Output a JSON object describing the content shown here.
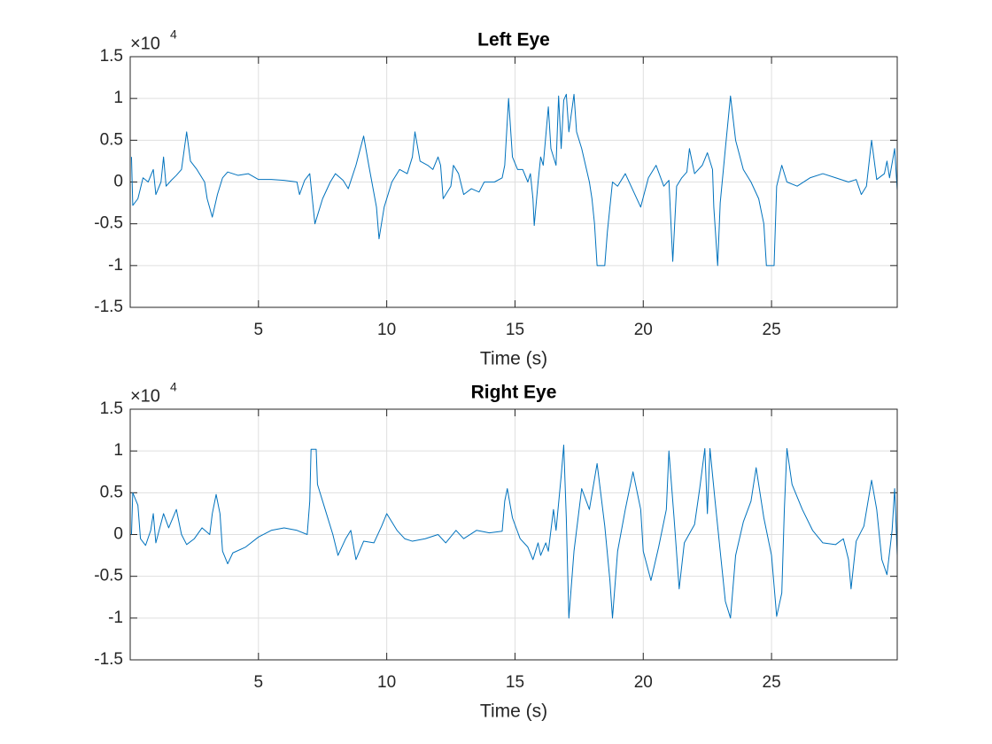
{
  "chart_data": [
    {
      "type": "line",
      "title": "Left Eye",
      "xlabel": "Time (s)",
      "y_scale_label": {
        "base": "×10",
        "exponent": "4"
      },
      "xlim": [
        0,
        29.9
      ],
      "xticks": [
        5,
        10,
        15,
        20,
        25
      ],
      "ylim": [
        -15000,
        15000
      ],
      "yticks": [
        {
          "value": -15000,
          "label": "-1.5"
        },
        {
          "value": -10000,
          "label": "-1"
        },
        {
          "value": -5000,
          "label": "-0.5"
        },
        {
          "value": 0,
          "label": "0"
        },
        {
          "value": 5000,
          "label": "0.5"
        },
        {
          "value": 10000,
          "label": "1"
        },
        {
          "value": 15000,
          "label": "1.5"
        }
      ],
      "grid": true,
      "x": [
        0.05,
        0.1,
        0.3,
        0.5,
        0.7,
        0.9,
        1.0,
        1.2,
        1.3,
        1.4,
        1.6,
        1.8,
        2.0,
        2.2,
        2.35,
        2.6,
        2.9,
        3.0,
        3.2,
        3.4,
        3.6,
        3.8,
        4.2,
        4.6,
        5.0,
        5.5,
        6.0,
        6.5,
        6.6,
        6.8,
        7.0,
        7.1,
        7.2,
        7.5,
        7.8,
        8.0,
        8.3,
        8.5,
        8.8,
        9.1,
        9.3,
        9.6,
        9.7,
        9.9,
        10.2,
        10.5,
        10.8,
        11.0,
        11.1,
        11.3,
        11.6,
        11.8,
        12.0,
        12.1,
        12.2,
        12.5,
        12.6,
        12.8,
        13.0,
        13.3,
        13.6,
        13.8,
        14.2,
        14.5,
        14.6,
        14.75,
        14.9,
        15.1,
        15.3,
        15.5,
        15.6,
        15.7,
        15.75,
        15.9,
        16.0,
        16.1,
        16.3,
        16.4,
        16.6,
        16.7,
        16.8,
        16.9,
        17.0,
        17.1,
        17.3,
        17.4,
        17.6,
        17.9,
        18.0,
        18.1,
        18.2,
        18.5,
        18.6,
        18.8,
        19.0,
        19.3,
        19.6,
        19.9,
        20.2,
        20.5,
        20.8,
        21.0,
        21.15,
        21.3,
        21.5,
        21.7,
        21.8,
        22.0,
        22.3,
        22.5,
        22.7,
        22.75,
        22.9,
        23.0,
        23.2,
        23.4,
        23.6,
        23.9,
        24.2,
        24.5,
        24.7,
        24.8,
        25.1,
        25.2,
        25.4,
        25.6,
        26.0,
        26.5,
        27.0,
        27.5,
        28.0,
        28.3,
        28.5,
        28.7,
        28.9,
        29.1,
        29.4,
        29.5,
        29.6,
        29.8,
        29.9
      ],
      "series": [
        {
          "color": "#0072bd",
          "values": [
            3000,
            -2800,
            -2000,
            500,
            0,
            1500,
            -1500,
            0,
            3000,
            -500,
            200,
            800,
            1500,
            6000,
            2500,
            1500,
            0,
            -2000,
            -4200,
            -1500,
            500,
            1200,
            800,
            1000,
            300,
            300,
            200,
            0,
            -1500,
            200,
            1000,
            -2000,
            -5000,
            -2000,
            0,
            1000,
            200,
            -800,
            2000,
            5500,
            2000,
            -3000,
            -6800,
            -3000,
            0,
            1500,
            1000,
            3000,
            6000,
            2500,
            2000,
            1500,
            3000,
            2000,
            -2000,
            -500,
            2000,
            1000,
            -1500,
            -800,
            -1200,
            0,
            0,
            500,
            2000,
            10000,
            3000,
            1500,
            1500,
            0,
            1000,
            -2000,
            -5200,
            0,
            3000,
            2000,
            9000,
            4000,
            2000,
            10300,
            4000,
            9800,
            10500,
            6000,
            10500,
            6000,
            4000,
            0,
            -2000,
            -5000,
            -10000,
            -10000,
            -6000,
            0,
            -500,
            1000,
            -1000,
            -3000,
            500,
            2000,
            -500,
            200,
            -9500,
            -500,
            500,
            1200,
            4000,
            1000,
            2000,
            3500,
            1500,
            -3000,
            -10000,
            -2500,
            4000,
            10300,
            5000,
            1500,
            0,
            -2000,
            -5000,
            -10000,
            -10000,
            -500,
            2000,
            0,
            -500,
            500,
            1000,
            500,
            0,
            300,
            -1500,
            -500,
            5000,
            300,
            1000,
            2500,
            500,
            4000,
            -1000
          ]
        }
      ]
    },
    {
      "type": "line",
      "title": "Right Eye",
      "xlabel": "Time (s)",
      "y_scale_label": {
        "base": "×10",
        "exponent": "4"
      },
      "xlim": [
        0,
        29.9
      ],
      "xticks": [
        5,
        10,
        15,
        20,
        25
      ],
      "ylim": [
        -15000,
        15000
      ],
      "yticks": [
        {
          "value": -15000,
          "label": "-1.5"
        },
        {
          "value": -10000,
          "label": "-1"
        },
        {
          "value": -5000,
          "label": "-0.5"
        },
        {
          "value": 0,
          "label": "0"
        },
        {
          "value": 5000,
          "label": "0.5"
        },
        {
          "value": 10000,
          "label": "1"
        },
        {
          "value": 15000,
          "label": "1.5"
        }
      ],
      "grid": true,
      "x": [
        0.05,
        0.1,
        0.3,
        0.4,
        0.6,
        0.8,
        0.9,
        1.0,
        1.3,
        1.5,
        1.8,
        2.0,
        2.2,
        2.5,
        2.8,
        3.1,
        3.2,
        3.35,
        3.5,
        3.6,
        3.8,
        4.0,
        4.5,
        5.0,
        5.5,
        6.0,
        6.5,
        6.9,
        7.0,
        7.05,
        7.25,
        7.3,
        7.6,
        7.9,
        8.1,
        8.4,
        8.6,
        8.8,
        9.1,
        9.5,
        9.8,
        10.0,
        10.4,
        10.7,
        11.0,
        11.5,
        12.0,
        12.3,
        12.7,
        13.0,
        13.5,
        14.0,
        14.5,
        14.6,
        14.7,
        14.9,
        15.2,
        15.5,
        15.7,
        15.9,
        16.0,
        16.2,
        16.3,
        16.5,
        16.6,
        16.8,
        16.9,
        17.0,
        17.1,
        17.3,
        17.6,
        17.9,
        18.2,
        18.5,
        18.7,
        18.8,
        19.0,
        19.3,
        19.6,
        19.9,
        20.0,
        20.3,
        20.6,
        20.9,
        21.0,
        21.2,
        21.4,
        21.6,
        22.0,
        22.2,
        22.4,
        22.5,
        22.6,
        22.8,
        23.0,
        23.2,
        23.4,
        23.6,
        23.9,
        24.2,
        24.4,
        24.7,
        25.0,
        25.2,
        25.4,
        25.5,
        25.6,
        25.8,
        26.2,
        26.6,
        27.0,
        27.5,
        27.8,
        28.0,
        28.1,
        28.3,
        28.6,
        28.9,
        29.1,
        29.3,
        29.5,
        29.7,
        29.8,
        29.9
      ],
      "series": [
        {
          "color": "#0072bd",
          "values": [
            0,
            5000,
            3500,
            -500,
            -1300,
            500,
            2500,
            -1000,
            2500,
            800,
            3000,
            0,
            -1200,
            -500,
            800,
            0,
            2500,
            4800,
            2500,
            -2000,
            -3500,
            -2200,
            -1500,
            -300,
            500,
            800,
            500,
            0,
            4000,
            10200,
            10200,
            6000,
            3000,
            0,
            -2500,
            -500,
            500,
            -3000,
            -800,
            -1000,
            1000,
            2500,
            500,
            -500,
            -800,
            -500,
            0,
            -1000,
            500,
            -500,
            500,
            200,
            400,
            4000,
            5500,
            2000,
            -500,
            -1500,
            -3000,
            -1000,
            -2500,
            -1000,
            -2000,
            3000,
            500,
            7000,
            10700,
            2000,
            -10000,
            -2000,
            5500,
            3000,
            8500,
            1000,
            -5500,
            -10000,
            -2000,
            3000,
            7500,
            3000,
            -2000,
            -5500,
            -1500,
            3000,
            10000,
            2000,
            -6500,
            -1000,
            1200,
            5500,
            10300,
            2500,
            10300,
            4000,
            -2000,
            -8000,
            -10000,
            -2500,
            1500,
            4000,
            8000,
            2000,
            -2500,
            -9800,
            -7000,
            3000,
            10300,
            6000,
            3000,
            500,
            -1000,
            -1200,
            -500,
            -3000,
            -6500,
            -800,
            1000,
            6500,
            3000,
            -3000,
            -4800,
            500,
            5500,
            -2500
          ]
        }
      ]
    }
  ]
}
